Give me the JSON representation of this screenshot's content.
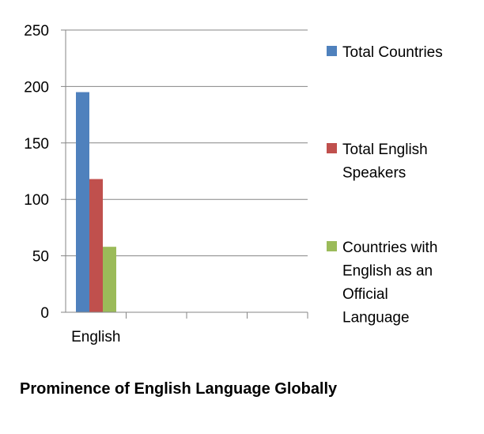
{
  "chart_data": {
    "type": "bar",
    "title": "Prominence of English Language Globally",
    "categories": [
      "English"
    ],
    "ylim": [
      0,
      250
    ],
    "yticks": [
      0,
      50,
      100,
      150,
      200,
      250
    ],
    "grid": true,
    "legend_position": "right",
    "series": [
      {
        "name": "Total Countries",
        "legend_lines": [
          "Total Countries"
        ],
        "values": [
          195
        ],
        "color": "#4F81BD"
      },
      {
        "name": "Total English Speakers",
        "legend_lines": [
          "Total English",
          "Speakers"
        ],
        "values": [
          118
        ],
        "color": "#C0504D"
      },
      {
        "name": "Countries with English as an Official Language",
        "legend_lines": [
          "Countries with",
          "English as an",
          "Official",
          "Language"
        ],
        "values": [
          58
        ],
        "color": "#9BBB59"
      }
    ]
  }
}
